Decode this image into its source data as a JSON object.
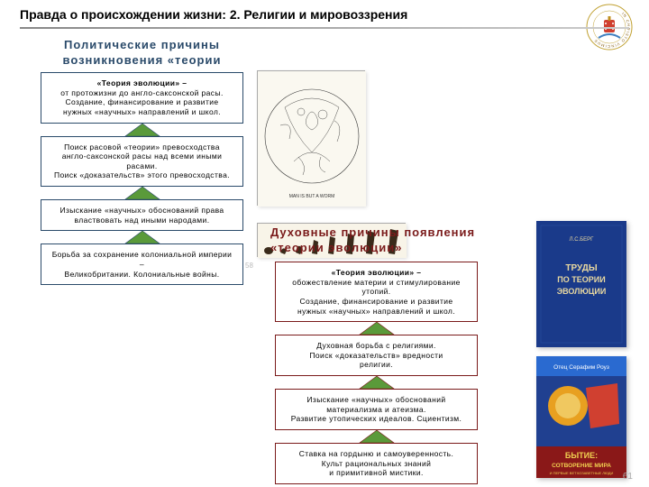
{
  "header": {
    "title": "Правда о происхождении жизни: 2. Религии и мировоззрения",
    "logo_ring_text": "IN CHRISTO VINCIMUS"
  },
  "political": {
    "title_l1": "Политические  причины",
    "title_l2": "возникновения  «теории  эволюции»",
    "title_color": "#2a4a6a",
    "border_color": "#2a4a6a",
    "arrow_fill": "#5a9a3a",
    "arrow_stroke": "#2a4a6a",
    "boxes": [
      {
        "head": "«Теория  эволюции»  –",
        "body": "от  протожизни  до  англо-саксонской  расы.\nСоздание,  финансирование  и  развитие\nнужных  «научных»  направлений  и  школ."
      },
      {
        "body": "Поиск  расовой  «теории»  превосходства\nангло-саксонской  расы  над  всеми  иными  расами.\nПоиск  «доказательств»  этого  превосходства."
      },
      {
        "body": "Изыскание  «научных»  обоснований  права\nвластвовать  над  иными  народами."
      },
      {
        "body": "Борьба  за  сохранение  колониальной  империи –\nВеликобритании.  Колониальные  войны."
      }
    ]
  },
  "spiritual": {
    "title_l1": "Духовные  причины  появления",
    "title_l2": "«теории  эволюции»",
    "title_color": "#7a1a1a",
    "border_color": "#7a1a1a",
    "arrow_fill": "#5a9a3a",
    "arrow_stroke": "#7a1a1a",
    "boxes": [
      {
        "head": "«Теория  эволюции»  –",
        "body": "обожествление материи и стимулирование утопий.\nСоздание,  финансирование  и  развитие\nнужных  «научных»  направлений  и  школ."
      },
      {
        "body": "Духовная  борьба  с  религиями.\nПоиск  «доказательств»  вредности\nрелигии."
      },
      {
        "body": "Изыскание  «научных»  обоснований\nматериализма  и  атеизма.\nРазвитие  утопических  идеалов.  Сциентизм."
      },
      {
        "body": "Ставка  на  гордыню  и  самоуверенность.\nКульт  рациональных  знаний\nи  примитивной  мистики."
      }
    ]
  },
  "images": {
    "engraving_caption": "MAN IS BUT A WORM",
    "evolution_caption": "evolution-of-man",
    "small_page_num": "58"
  },
  "books": {
    "top": {
      "author": "Л.С.БЕРГ",
      "title_l1": "ТРУДЫ",
      "title_l2": "ПО ТЕОРИИ",
      "title_l3": "ЭВОЛЮЦИИ",
      "cover_color": "#1a3a8a",
      "text_color": "#e8d8a0"
    },
    "bottom": {
      "author": "Отец Серафим Роуз",
      "title_l1": "БЫТИЕ:",
      "title_l2": "СОТВОРЕНИЕ МИРА",
      "subtitle": "И ПЕРВЫЕ ВЕТХОЗАВЕТНЫЕ ЛЮДИ",
      "cover_top": "#2a6ad0",
      "cover_bottom": "#e8a020",
      "text_color": "#ffffff"
    }
  },
  "page_num": "61"
}
